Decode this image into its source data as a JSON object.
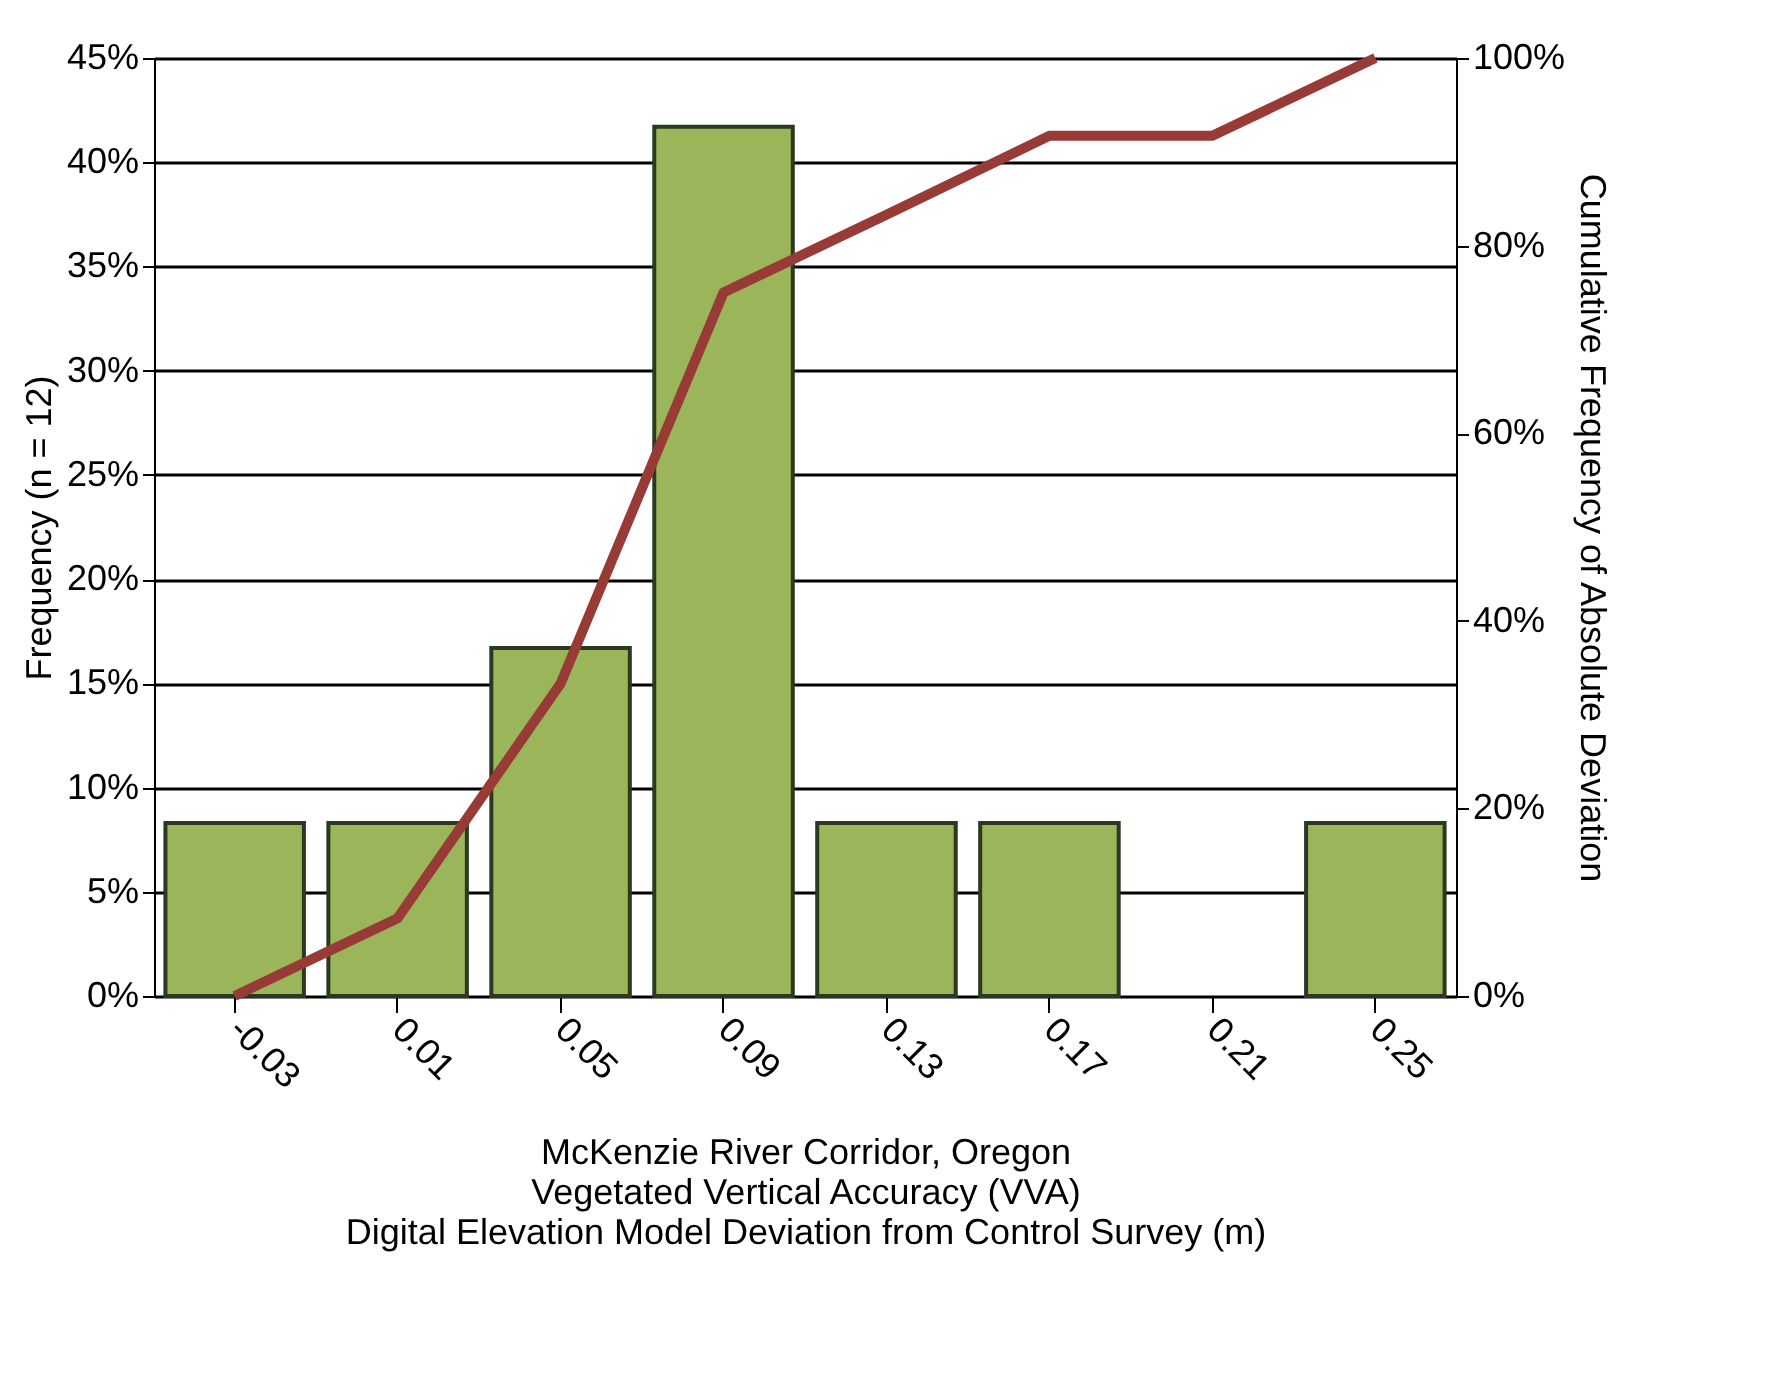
{
  "chart_data": {
    "type": "bar",
    "xlabel": "McKenzie River Corridor, Oregon\nVegetated Vertical Accuracy (VVA)\nDigital Elevation Model Deviation from Control Survey (m)",
    "ylabel": "Frequency (n = 12)",
    "y2label": "Cumulative Frequency of Absolute Deviation",
    "categories": [
      "-0.03",
      "0.01",
      "0.05",
      "0.09",
      "0.13",
      "0.17",
      "0.21",
      "0.25"
    ],
    "series": [
      {
        "color": "#9ab55a",
        "values": [
          8.3,
          8.3,
          16.7,
          41.7,
          8.3,
          8.3,
          0,
          8.3
        ]
      },
      {
        "type": "line",
        "axis": "y2",
        "color": "#983b36",
        "values": [
          0,
          8.3,
          33.3,
          75,
          83.3,
          91.7,
          91.7,
          100
        ]
      }
    ],
    "ylim": [
      0,
      45
    ],
    "yticks": [
      {
        "value": 0,
        "label": "0%"
      },
      {
        "value": 5,
        "label": "5%"
      },
      {
        "value": 10,
        "label": "10%"
      },
      {
        "value": 15,
        "label": "15%"
      },
      {
        "value": 20,
        "label": "20%"
      },
      {
        "value": 25,
        "label": "25%"
      },
      {
        "value": 30,
        "label": "30%"
      },
      {
        "value": 35,
        "label": "35%"
      },
      {
        "value": 40,
        "label": "40%"
      },
      {
        "value": 45,
        "label": "45%"
      }
    ],
    "y2lim": [
      0,
      100
    ],
    "y2ticks": [
      {
        "value": 0,
        "label": "0%"
      },
      {
        "value": 20,
        "label": "20%"
      },
      {
        "value": 40,
        "label": "40%"
      },
      {
        "value": 60,
        "label": "60%"
      },
      {
        "value": 80,
        "label": "80%"
      },
      {
        "value": 100,
        "label": "100%"
      }
    ],
    "grid": "y",
    "marker": "none",
    "line_style": "solid"
  }
}
